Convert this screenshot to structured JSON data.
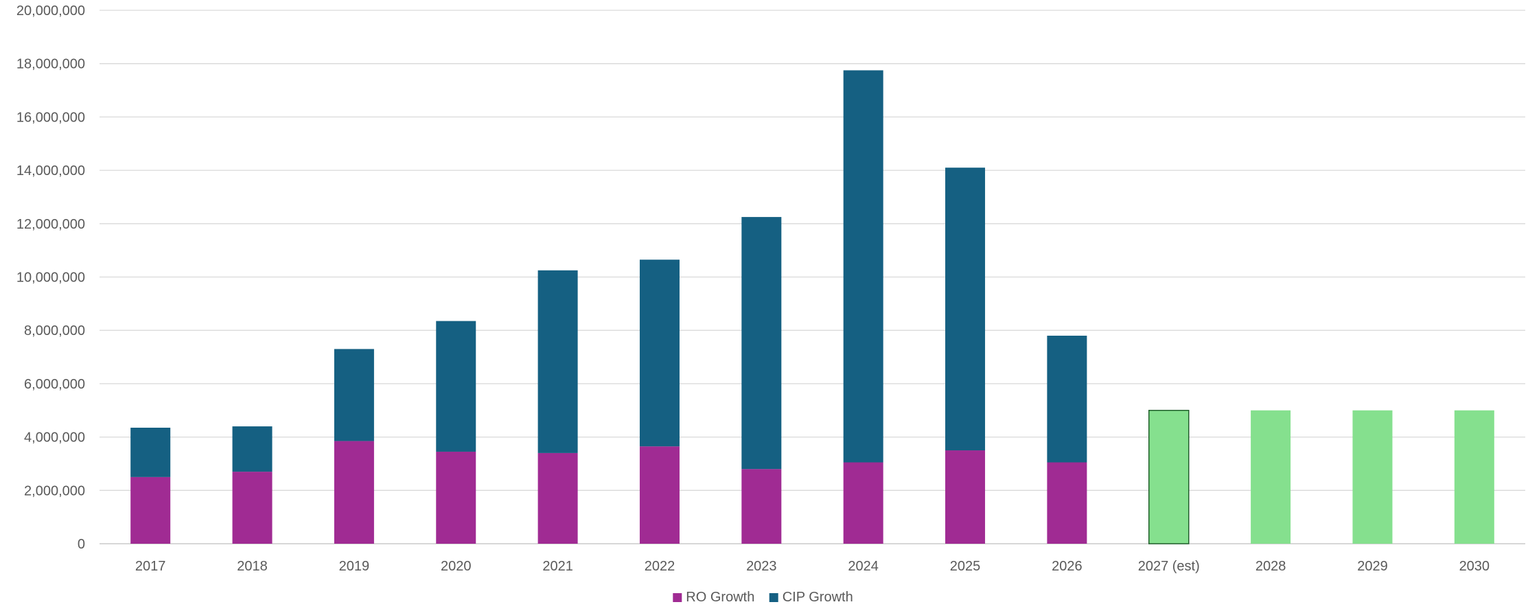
{
  "chart_data": {
    "type": "bar",
    "stacked": true,
    "categories": [
      "2017",
      "2018",
      "2019",
      "2020",
      "2021",
      "2022",
      "2023",
      "2024",
      "2025",
      "2026",
      "2027 (est)",
      "2028",
      "2029",
      "2030"
    ],
    "series": [
      {
        "name": "RO Growth",
        "color": "#A02B93",
        "values": [
          2500000,
          2700000,
          3850000,
          3450000,
          3400000,
          3650000,
          2800000,
          3050000,
          3500000,
          3050000,
          null,
          null,
          null,
          null
        ]
      },
      {
        "name": "CIP Growth",
        "color": "#156082",
        "values": [
          1850000,
          1700000,
          3450000,
          4900000,
          6850000,
          7000000,
          9450000,
          14700000,
          10600000,
          4750000,
          null,
          null,
          null,
          null
        ]
      },
      {
        "color": "#85E08E",
        "values": [
          null,
          null,
          null,
          null,
          null,
          null,
          null,
          null,
          null,
          null,
          5000000,
          5000000,
          5000000,
          5000000
        ]
      }
    ],
    "outlined_category": "2027 (est)",
    "y_ticks": [
      "0",
      "2,000,000",
      "4,000,000",
      "6,000,000",
      "8,000,000",
      "10,000,000",
      "12,000,000",
      "14,000,000",
      "16,000,000",
      "18,000,000",
      "20,000,000"
    ],
    "ylim": [
      0,
      20000000
    ],
    "grid": true,
    "legend": {
      "placement": "bottom",
      "entries": [
        "RO Growth",
        "CIP Growth"
      ]
    },
    "title": "",
    "xlabel": "",
    "ylabel": ""
  }
}
